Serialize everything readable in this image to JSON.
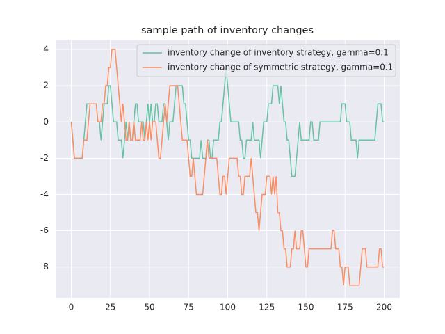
{
  "chart_data": {
    "type": "line",
    "title": "sample path of inventory changes",
    "x": [
      0,
      1,
      2,
      3,
      4,
      5,
      6,
      7,
      8,
      9,
      10,
      11,
      12,
      13,
      14,
      15,
      16,
      17,
      18,
      19,
      20,
      21,
      22,
      23,
      24,
      25,
      26,
      27,
      28,
      29,
      30,
      31,
      32,
      33,
      34,
      35,
      36,
      37,
      38,
      39,
      40,
      41,
      42,
      43,
      44,
      45,
      46,
      47,
      48,
      49,
      50,
      51,
      52,
      53,
      54,
      55,
      56,
      57,
      58,
      59,
      60,
      61,
      62,
      63,
      64,
      65,
      66,
      67,
      68,
      69,
      70,
      71,
      72,
      73,
      74,
      75,
      76,
      77,
      78,
      79,
      80,
      81,
      82,
      83,
      84,
      85,
      86,
      87,
      88,
      89,
      90,
      91,
      92,
      93,
      94,
      95,
      96,
      97,
      98,
      99,
      100,
      101,
      102,
      103,
      104,
      105,
      106,
      107,
      108,
      109,
      110,
      111,
      112,
      113,
      114,
      115,
      116,
      117,
      118,
      119,
      120,
      121,
      122,
      123,
      124,
      125,
      126,
      127,
      128,
      129,
      130,
      131,
      132,
      133,
      134,
      135,
      136,
      137,
      138,
      139,
      140,
      141,
      142,
      143,
      144,
      145,
      146,
      147,
      148,
      149,
      150,
      151,
      152,
      153,
      154,
      155,
      156,
      157,
      158,
      159,
      160,
      161,
      162,
      163,
      164,
      165,
      166,
      167,
      168,
      169,
      170,
      171,
      172,
      173,
      174,
      175,
      176,
      177,
      178,
      179,
      180,
      181,
      182,
      183,
      184,
      185,
      186,
      187,
      188,
      189,
      190,
      191,
      192,
      193,
      194,
      195,
      196,
      197,
      198,
      199,
      200
    ],
    "series": [
      {
        "name": "inventory change of inventory strategy, gamma=0.1",
        "color": "#66c2a5",
        "values": [
          0,
          -1,
          -2,
          -2,
          -2,
          -2,
          -2,
          -2,
          -1,
          0,
          1,
          1,
          1,
          1,
          1,
          1,
          1,
          0,
          0,
          -1,
          0,
          1,
          1,
          1,
          2,
          2,
          1,
          0,
          0,
          0,
          -1,
          -1,
          -1,
          -2,
          -1,
          0,
          -1,
          0,
          -1,
          -1,
          0,
          1,
          1,
          0,
          0,
          0,
          0,
          -1,
          0,
          1,
          0,
          1,
          0,
          0,
          1,
          1,
          0,
          0,
          0,
          1,
          1,
          0,
          -1,
          0,
          0,
          0,
          1,
          2,
          2,
          2,
          2,
          2,
          1,
          1,
          0,
          -1,
          -1,
          -2,
          -2,
          -2,
          -2,
          -2,
          -2,
          -1,
          -2,
          -2,
          -2,
          -1,
          -1,
          -2,
          -2,
          -1,
          -1,
          -1,
          -1,
          0,
          0,
          1,
          2,
          3,
          2,
          1,
          0,
          0,
          0,
          0,
          0,
          0,
          -1,
          -1,
          -2,
          -2,
          -1,
          -1,
          -1,
          -1,
          0,
          -1,
          -1,
          -1,
          -1,
          -2,
          -1,
          0,
          0,
          0,
          1,
          1,
          1,
          2,
          2,
          2,
          2,
          1,
          2,
          1,
          0,
          0,
          -1,
          -1,
          -2,
          -3,
          -3,
          -3,
          -2,
          -1,
          0,
          -1,
          -1,
          -1,
          -1,
          -1,
          -1,
          0,
          0,
          -1,
          -1,
          -1,
          -1,
          0,
          0,
          0,
          0,
          0,
          0,
          0,
          0,
          0,
          0,
          0,
          0,
          0,
          0,
          1,
          1,
          1,
          0,
          0,
          0,
          -1,
          -1,
          -1,
          -1,
          -2,
          -1,
          -1,
          -1,
          -1,
          -1,
          -1,
          -1,
          -1,
          -1,
          -1,
          -1,
          0,
          1,
          1,
          1,
          0,
          0
        ]
      },
      {
        "name": "inventory change of symmetric strategy, gamma=0.1",
        "color": "#fc8d62",
        "values": [
          0,
          -1,
          -2,
          -2,
          -2,
          -2,
          -2,
          -2,
          -1,
          -1,
          -1,
          0,
          1,
          1,
          1,
          1,
          1,
          0,
          0,
          0,
          1,
          1,
          2,
          2,
          3,
          3,
          4,
          4,
          4,
          3,
          2,
          1,
          0,
          1,
          0,
          -1,
          -1,
          0,
          -1,
          -1,
          0,
          -1,
          -1,
          -1,
          -1,
          0,
          -1,
          -1,
          0,
          -1,
          0,
          -1,
          0,
          0,
          0,
          -1,
          -2,
          -2,
          -1,
          0,
          1,
          0,
          1,
          2,
          2,
          2,
          2,
          2,
          2,
          1,
          0,
          -1,
          -1,
          -1,
          -1,
          -2,
          -3,
          -3,
          -2,
          -3,
          -4,
          -4,
          -4,
          -4,
          -4,
          -3,
          -2,
          -1,
          -2,
          -2,
          -2,
          -2,
          -2,
          -2,
          -3,
          -4,
          -4,
          -3,
          -3,
          -4,
          -3,
          -2,
          -2,
          -2,
          -2,
          -2,
          -2,
          -3,
          -3,
          -4,
          -4,
          -3,
          -3,
          -3,
          -3,
          -2,
          -3,
          -4,
          -5,
          -5,
          -6,
          -5,
          -4,
          -4,
          -4,
          -3,
          -3,
          -3,
          -4,
          -3,
          -4,
          -3,
          -5,
          -5,
          -6,
          -6,
          -7,
          -7,
          -8,
          -8,
          -8,
          -7,
          -7,
          -6,
          -7,
          -7,
          -7,
          -6,
          -6,
          -7,
          -8,
          -8,
          -7,
          -7,
          -7,
          -7,
          -7,
          -7,
          -7,
          -7,
          -7,
          -7,
          -7,
          -7,
          -7,
          -7,
          -7,
          -6,
          -6,
          -7,
          -7,
          -7,
          -8,
          -8,
          -9,
          -8,
          -8,
          -8,
          -9,
          -9,
          -9,
          -9,
          -9,
          -9,
          -9,
          -8,
          -7,
          -7,
          -7,
          -8,
          -8,
          -8,
          -8,
          -8,
          -8,
          -8,
          -8,
          -7,
          -7,
          -8,
          -8
        ]
      }
    ],
    "xlim": [
      -10,
      210
    ],
    "ylim": [
      -9.7,
      4.5
    ],
    "xticks": [
      0,
      25,
      50,
      75,
      100,
      125,
      150,
      175,
      200
    ],
    "yticks": [
      -8,
      -6,
      -4,
      -2,
      0,
      2,
      4
    ],
    "grid": true,
    "legend": "upper right"
  }
}
